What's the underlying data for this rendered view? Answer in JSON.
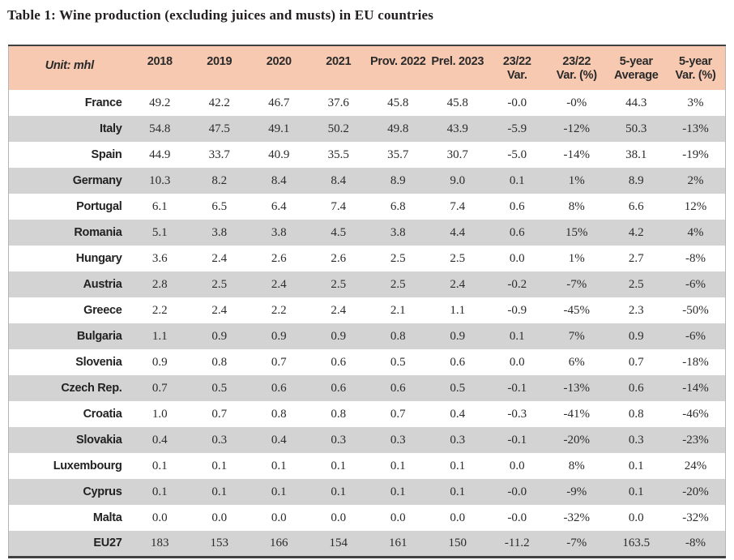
{
  "page": {
    "title": "Table 1: Wine production (excluding juices and musts) in EU countries"
  },
  "colors": {
    "header_bg": "#f7c9b1",
    "row_alt_bg": "#d3d3d3",
    "border_dark": "#404040",
    "text": "#231f20"
  },
  "table": {
    "unit_label": "Unit: mhl",
    "columns": [
      {
        "label": "2018",
        "sub": ""
      },
      {
        "label": "2019",
        "sub": ""
      },
      {
        "label": "2020",
        "sub": ""
      },
      {
        "label": "2021",
        "sub": ""
      },
      {
        "label": "Prov. 2022",
        "sub": ""
      },
      {
        "label": "Prel. 2023",
        "sub": ""
      },
      {
        "label": "23/22",
        "sub": "Var."
      },
      {
        "label": "23/22",
        "sub": "Var. (%)"
      },
      {
        "label": "5-year",
        "sub": "Average"
      },
      {
        "label": "5-year",
        "sub": "Var. (%)"
      }
    ],
    "rows": [
      {
        "country": "France",
        "values": [
          "49.2",
          "42.2",
          "46.7",
          "37.6",
          "45.8",
          "45.8",
          "-0.0",
          "-0%",
          "44.3",
          "3%"
        ]
      },
      {
        "country": "Italy",
        "values": [
          "54.8",
          "47.5",
          "49.1",
          "50.2",
          "49.8",
          "43.9",
          "-5.9",
          "-12%",
          "50.3",
          "-13%"
        ]
      },
      {
        "country": "Spain",
        "values": [
          "44.9",
          "33.7",
          "40.9",
          "35.5",
          "35.7",
          "30.7",
          "-5.0",
          "-14%",
          "38.1",
          "-19%"
        ]
      },
      {
        "country": "Germany",
        "values": [
          "10.3",
          "8.2",
          "8.4",
          "8.4",
          "8.9",
          "9.0",
          "0.1",
          "1%",
          "8.9",
          "2%"
        ]
      },
      {
        "country": "Portugal",
        "values": [
          "6.1",
          "6.5",
          "6.4",
          "7.4",
          "6.8",
          "7.4",
          "0.6",
          "8%",
          "6.6",
          "12%"
        ]
      },
      {
        "country": "Romania",
        "values": [
          "5.1",
          "3.8",
          "3.8",
          "4.5",
          "3.8",
          "4.4",
          "0.6",
          "15%",
          "4.2",
          "4%"
        ]
      },
      {
        "country": "Hungary",
        "values": [
          "3.6",
          "2.4",
          "2.6",
          "2.6",
          "2.5",
          "2.5",
          "0.0",
          "1%",
          "2.7",
          "-8%"
        ]
      },
      {
        "country": "Austria",
        "values": [
          "2.8",
          "2.5",
          "2.4",
          "2.5",
          "2.5",
          "2.4",
          "-0.2",
          "-7%",
          "2.5",
          "-6%"
        ]
      },
      {
        "country": "Greece",
        "values": [
          "2.2",
          "2.4",
          "2.2",
          "2.4",
          "2.1",
          "1.1",
          "-0.9",
          "-45%",
          "2.3",
          "-50%"
        ]
      },
      {
        "country": "Bulgaria",
        "values": [
          "1.1",
          "0.9",
          "0.9",
          "0.9",
          "0.8",
          "0.9",
          "0.1",
          "7%",
          "0.9",
          "-6%"
        ]
      },
      {
        "country": "Slovenia",
        "values": [
          "0.9",
          "0.8",
          "0.7",
          "0.6",
          "0.5",
          "0.6",
          "0.0",
          "6%",
          "0.7",
          "-18%"
        ]
      },
      {
        "country": "Czech Rep.",
        "values": [
          "0.7",
          "0.5",
          "0.6",
          "0.6",
          "0.6",
          "0.5",
          "-0.1",
          "-13%",
          "0.6",
          "-14%"
        ]
      },
      {
        "country": "Croatia",
        "values": [
          "1.0",
          "0.7",
          "0.8",
          "0.8",
          "0.7",
          "0.4",
          "-0.3",
          "-41%",
          "0.8",
          "-46%"
        ]
      },
      {
        "country": "Slovakia",
        "values": [
          "0.4",
          "0.3",
          "0.4",
          "0.3",
          "0.3",
          "0.3",
          "-0.1",
          "-20%",
          "0.3",
          "-23%"
        ]
      },
      {
        "country": "Luxembourg",
        "values": [
          "0.1",
          "0.1",
          "0.1",
          "0.1",
          "0.1",
          "0.1",
          "0.0",
          "8%",
          "0.1",
          "24%"
        ]
      },
      {
        "country": "Cyprus",
        "values": [
          "0.1",
          "0.1",
          "0.1",
          "0.1",
          "0.1",
          "0.1",
          "-0.0",
          "-9%",
          "0.1",
          "-20%"
        ]
      },
      {
        "country": "Malta",
        "values": [
          "0.0",
          "0.0",
          "0.0",
          "0.0",
          "0.0",
          "0.0",
          "-0.0",
          "-32%",
          "0.0",
          "-32%"
        ]
      },
      {
        "country": "EU27",
        "values": [
          "183",
          "153",
          "166",
          "154",
          "161",
          "150",
          "-11.2",
          "-7%",
          "163.5",
          "-8%"
        ]
      }
    ]
  }
}
